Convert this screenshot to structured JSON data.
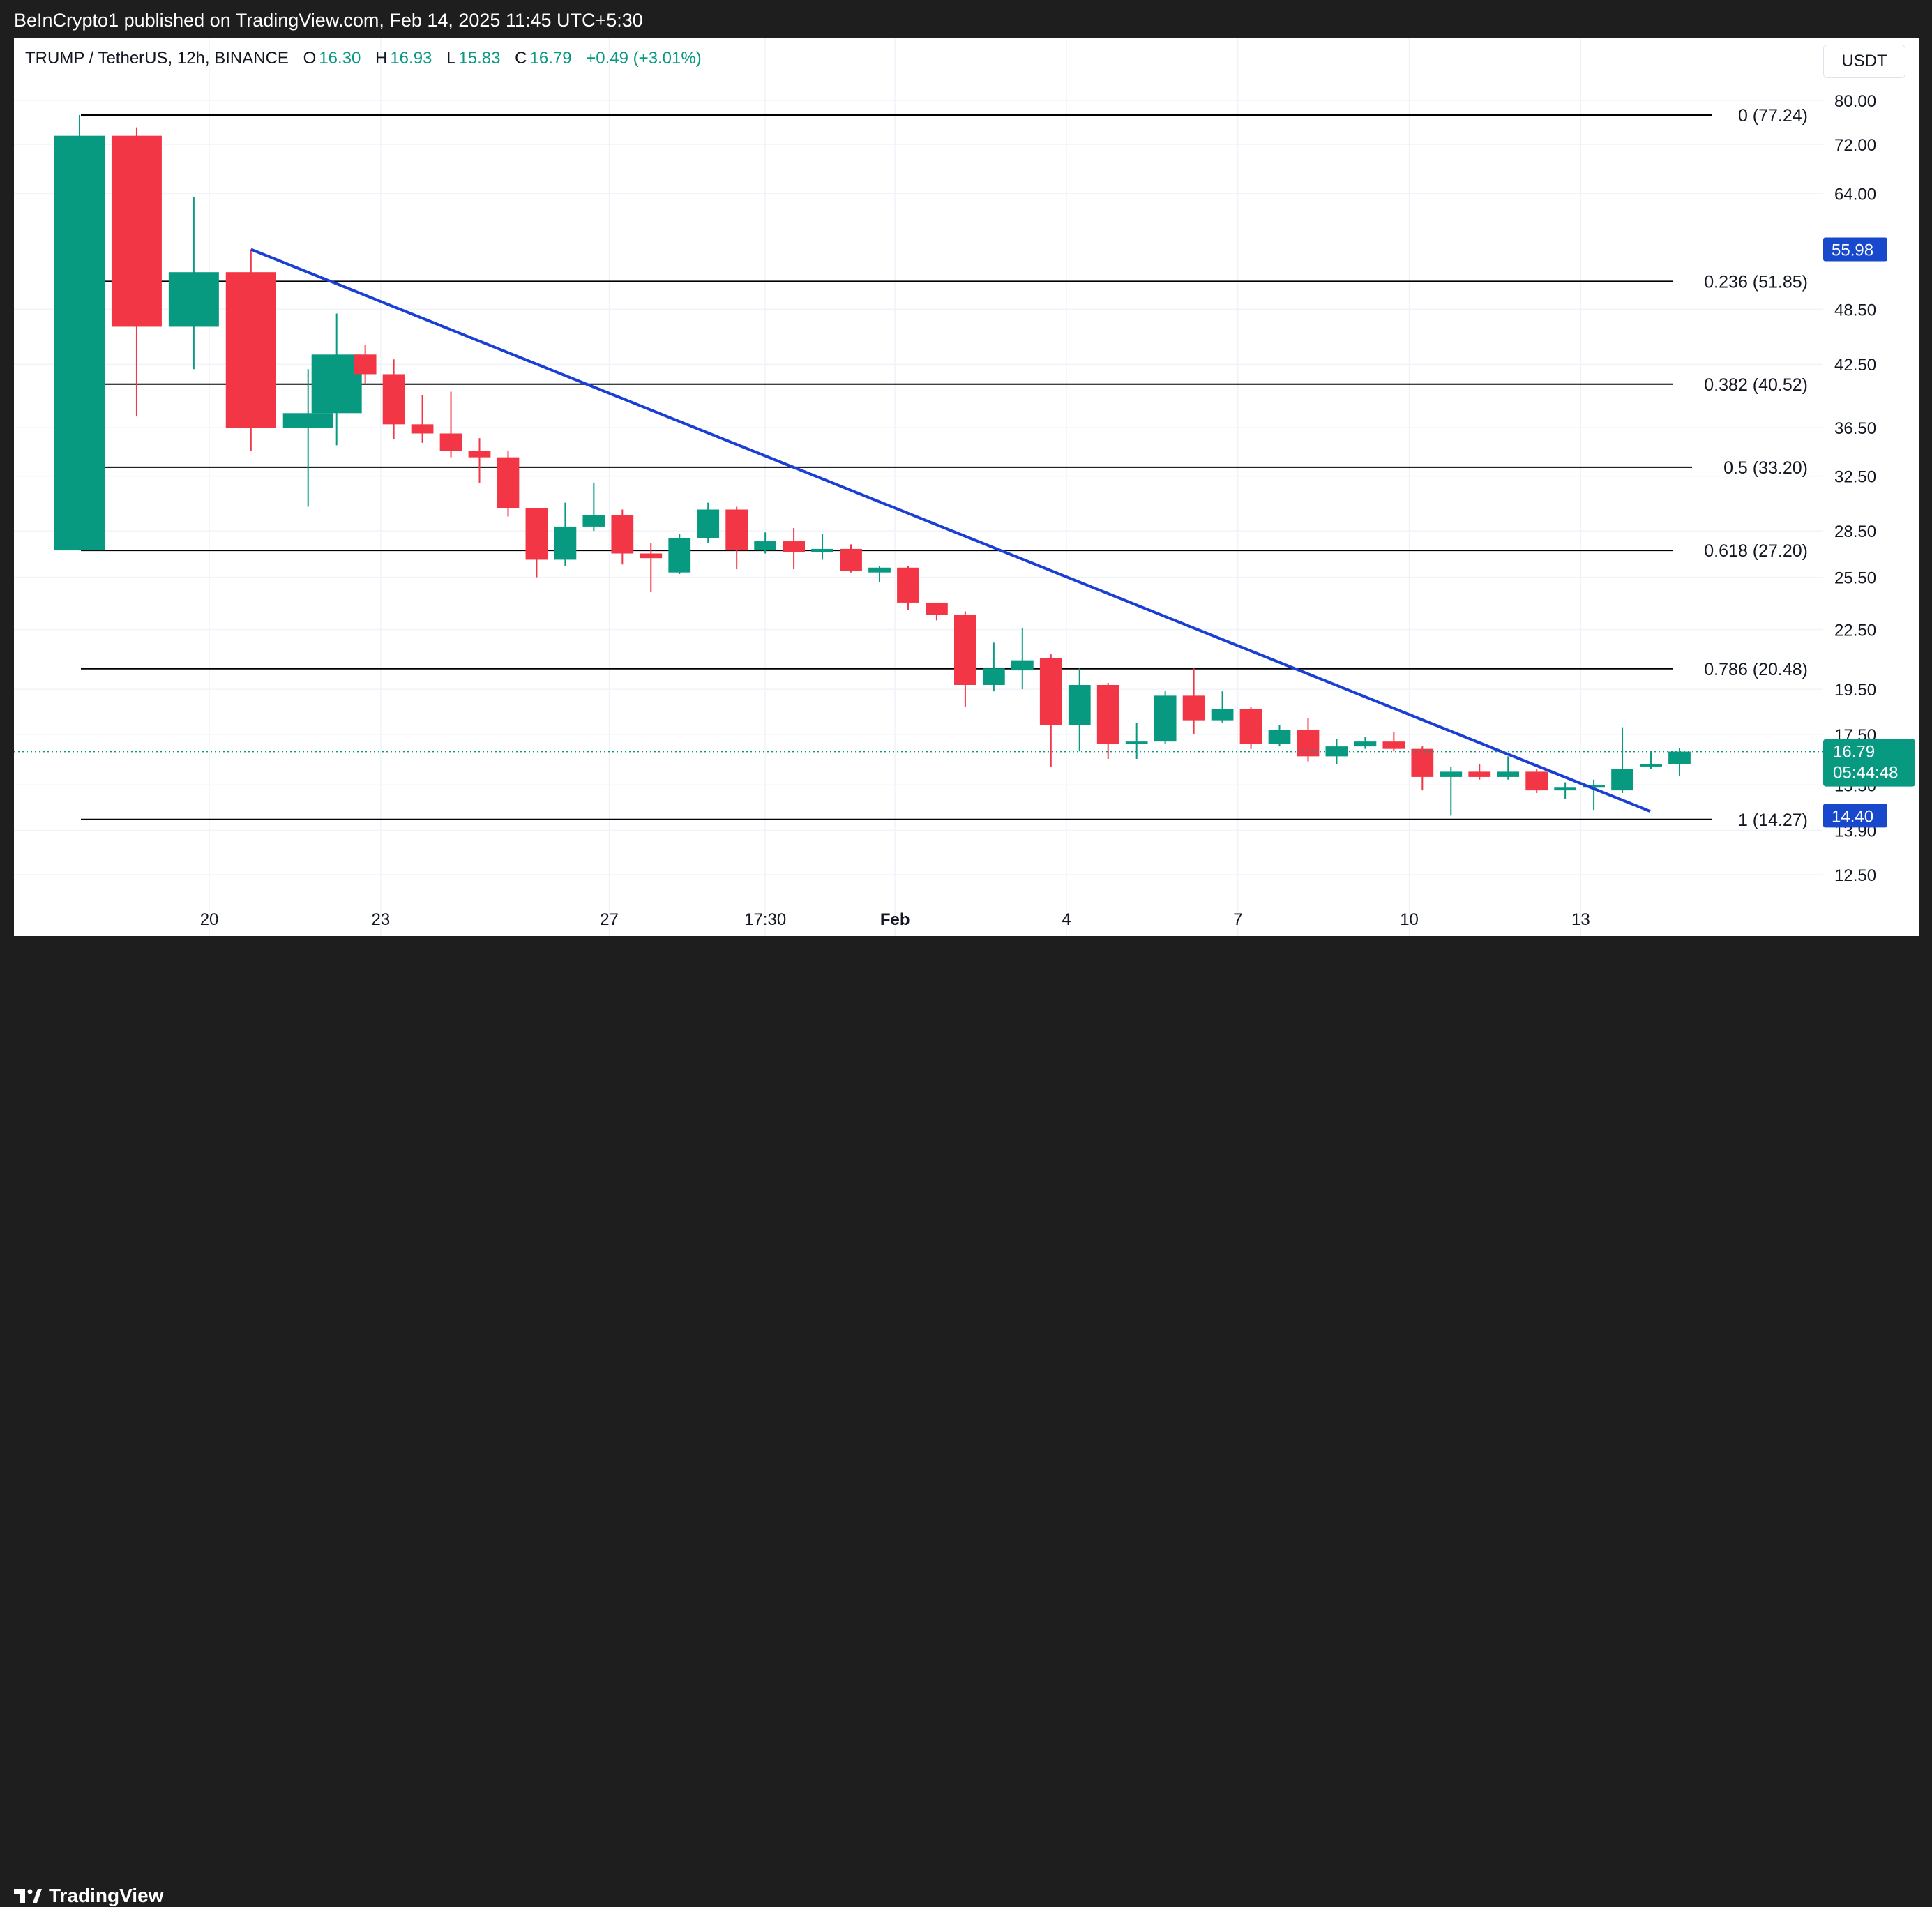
{
  "header": {
    "publisher": "BeInCrypto1 published on TradingView.com, Feb 14, 2025 11:45 UTC+5:30"
  },
  "footer": {
    "brand": "TradingView"
  },
  "legend": {
    "symbol": "TRUMP / TetherUS, 12h, BINANCE",
    "o_label": "O",
    "o": "16.30",
    "h_label": "H",
    "h": "16.93",
    "l_label": "L",
    "l": "15.83",
    "c_label": "C",
    "c": "16.79",
    "change": "+0.49 (+3.01%)"
  },
  "currency_button": "USDT",
  "colors": {
    "up": "#089981",
    "down": "#f23645",
    "trendline": "#1a3fd4",
    "fib": "#000000",
    "tag_blue": "#1848cc"
  },
  "chart_data": {
    "type": "candlestick",
    "scale": "log",
    "ylim": [
      11.9,
      85.0
    ],
    "y_ticks": [
      "80.00",
      "72.00",
      "64.00",
      "48.50",
      "42.50",
      "36.50",
      "32.50",
      "28.50",
      "25.50",
      "22.50",
      "19.50",
      "17.50",
      "15.50",
      "13.90",
      "12.50"
    ],
    "x_ticks": [
      {
        "label": "20",
        "t": "2025-01-20T00:00"
      },
      {
        "label": "23",
        "t": "2025-01-23T00:00"
      },
      {
        "label": "27",
        "t": "2025-01-27T00:00"
      },
      {
        "label": "17:30",
        "t": "2025-01-29T17:30"
      },
      {
        "label": "Feb",
        "t": "2025-02-01T00:00"
      },
      {
        "label": "4",
        "t": "2025-02-04T00:00"
      },
      {
        "label": "7",
        "t": "2025-02-07T00:00"
      },
      {
        "label": "10",
        "t": "2025-02-10T00:00"
      },
      {
        "label": "13",
        "t": "2025-02-13T00:00"
      }
    ],
    "candles": [
      {
        "t": "2025-01-17T17:30",
        "o": 27.2,
        "h": 77.24,
        "l": 27.2,
        "c": 73.5
      },
      {
        "t": "2025-01-18T17:30",
        "o": 73.5,
        "h": 75.0,
        "l": 37.5,
        "c": 46.5
      },
      {
        "t": "2025-01-19T17:30",
        "o": 46.5,
        "h": 63.5,
        "l": 42.0,
        "c": 53.0
      },
      {
        "t": "2025-01-20T17:30",
        "o": 53.0,
        "h": 55.98,
        "l": 34.5,
        "c": 36.5
      },
      {
        "t": "2025-01-21T17:30",
        "o": 36.5,
        "h": 42.0,
        "l": 30.2,
        "c": 37.8
      },
      {
        "t": "2025-01-22T05:30",
        "o": 37.8,
        "h": 48.0,
        "l": 35.0,
        "c": 43.5
      },
      {
        "t": "2025-01-22T17:30",
        "o": 43.5,
        "h": 44.5,
        "l": 40.5,
        "c": 41.5
      },
      {
        "t": "2025-01-23T05:30",
        "o": 41.5,
        "h": 43.0,
        "l": 35.5,
        "c": 36.8
      },
      {
        "t": "2025-01-23T17:30",
        "o": 36.8,
        "h": 39.5,
        "l": 35.2,
        "c": 36.0
      },
      {
        "t": "2025-01-24T05:30",
        "o": 36.0,
        "h": 39.8,
        "l": 34.0,
        "c": 34.5
      },
      {
        "t": "2025-01-24T17:30",
        "o": 34.5,
        "h": 35.6,
        "l": 32.0,
        "c": 34.0
      },
      {
        "t": "2025-01-25T05:30",
        "o": 34.0,
        "h": 34.5,
        "l": 29.5,
        "c": 30.1
      },
      {
        "t": "2025-01-25T17:30",
        "o": 30.1,
        "h": 30.1,
        "l": 25.5,
        "c": 26.6
      },
      {
        "t": "2025-01-26T05:30",
        "o": 26.6,
        "h": 30.5,
        "l": 26.2,
        "c": 28.8
      },
      {
        "t": "2025-01-26T17:30",
        "o": 28.8,
        "h": 32.0,
        "l": 28.5,
        "c": 29.6
      },
      {
        "t": "2025-01-27T05:30",
        "o": 29.6,
        "h": 30.0,
        "l": 26.3,
        "c": 27.0
      },
      {
        "t": "2025-01-27T17:30",
        "o": 27.0,
        "h": 27.7,
        "l": 24.6,
        "c": 26.7
      },
      {
        "t": "2025-01-28T05:30",
        "o": 25.8,
        "h": 28.3,
        "l": 25.7,
        "c": 28.0
      },
      {
        "t": "2025-01-28T17:30",
        "o": 28.0,
        "h": 30.5,
        "l": 27.7,
        "c": 30.0
      },
      {
        "t": "2025-01-29T05:30",
        "o": 30.0,
        "h": 30.2,
        "l": 26.0,
        "c": 27.2
      },
      {
        "t": "2025-01-29T17:30",
        "o": 27.2,
        "h": 28.4,
        "l": 27.0,
        "c": 27.8
      },
      {
        "t": "2025-01-30T05:30",
        "o": 27.8,
        "h": 28.7,
        "l": 26.0,
        "c": 27.1
      },
      {
        "t": "2025-01-30T17:30",
        "o": 27.1,
        "h": 28.3,
        "l": 26.6,
        "c": 27.3
      },
      {
        "t": "2025-01-31T05:30",
        "o": 27.3,
        "h": 27.6,
        "l": 25.8,
        "c": 25.9
      },
      {
        "t": "2025-01-31T17:30",
        "o": 25.8,
        "h": 26.2,
        "l": 25.2,
        "c": 26.1
      },
      {
        "t": "2025-02-01T05:30",
        "o": 26.1,
        "h": 26.2,
        "l": 23.6,
        "c": 24.0
      },
      {
        "t": "2025-02-01T17:30",
        "o": 24.0,
        "h": 24.0,
        "l": 23.0,
        "c": 23.3
      },
      {
        "t": "2025-02-02T05:30",
        "o": 23.3,
        "h": 23.5,
        "l": 18.7,
        "c": 19.7
      },
      {
        "t": "2025-02-02T17:30",
        "o": 19.7,
        "h": 21.8,
        "l": 19.4,
        "c": 20.5
      },
      {
        "t": "2025-02-03T05:30",
        "o": 20.4,
        "h": 22.6,
        "l": 19.5,
        "c": 20.9
      },
      {
        "t": "2025-02-03T17:30",
        "o": 21.0,
        "h": 21.2,
        "l": 16.2,
        "c": 17.9
      },
      {
        "t": "2025-02-04T05:30",
        "o": 17.9,
        "h": 20.5,
        "l": 16.8,
        "c": 19.7
      },
      {
        "t": "2025-02-04T17:30",
        "o": 19.7,
        "h": 19.8,
        "l": 16.5,
        "c": 17.1
      },
      {
        "t": "2025-02-05T05:30",
        "o": 17.1,
        "h": 18.0,
        "l": 16.5,
        "c": 17.2
      },
      {
        "t": "2025-02-05T17:30",
        "o": 17.2,
        "h": 19.4,
        "l": 17.1,
        "c": 19.2
      },
      {
        "t": "2025-02-06T05:30",
        "o": 19.2,
        "h": 20.5,
        "l": 17.5,
        "c": 18.1
      },
      {
        "t": "2025-02-06T17:30",
        "o": 18.1,
        "h": 19.4,
        "l": 18.0,
        "c": 18.6
      },
      {
        "t": "2025-02-07T05:30",
        "o": 18.6,
        "h": 18.7,
        "l": 16.9,
        "c": 17.1
      },
      {
        "t": "2025-02-07T17:30",
        "o": 17.1,
        "h": 17.9,
        "l": 17.0,
        "c": 17.7
      },
      {
        "t": "2025-02-08T05:30",
        "o": 17.7,
        "h": 18.2,
        "l": 16.4,
        "c": 16.6
      },
      {
        "t": "2025-02-08T17:30",
        "o": 16.6,
        "h": 17.3,
        "l": 16.3,
        "c": 17.0
      },
      {
        "t": "2025-02-09T05:30",
        "o": 17.0,
        "h": 17.4,
        "l": 16.9,
        "c": 17.2
      },
      {
        "t": "2025-02-09T17:30",
        "o": 17.2,
        "h": 17.6,
        "l": 16.8,
        "c": 16.9
      },
      {
        "t": "2025-02-10T05:30",
        "o": 16.9,
        "h": 17.0,
        "l": 15.3,
        "c": 15.8
      },
      {
        "t": "2025-02-10T17:30",
        "o": 15.8,
        "h": 16.2,
        "l": 14.4,
        "c": 16.0
      },
      {
        "t": "2025-02-11T05:30",
        "o": 16.0,
        "h": 16.3,
        "l": 15.7,
        "c": 15.8
      },
      {
        "t": "2025-02-11T17:30",
        "o": 15.8,
        "h": 16.6,
        "l": 15.7,
        "c": 16.0
      },
      {
        "t": "2025-02-12T05:30",
        "o": 16.0,
        "h": 16.1,
        "l": 15.2,
        "c": 15.3
      },
      {
        "t": "2025-02-12T17:30",
        "o": 15.3,
        "h": 15.6,
        "l": 15.0,
        "c": 15.4
      },
      {
        "t": "2025-02-13T05:30",
        "o": 15.4,
        "h": 15.7,
        "l": 14.6,
        "c": 15.5
      },
      {
        "t": "2025-02-13T17:30",
        "o": 15.3,
        "h": 17.8,
        "l": 15.2,
        "c": 16.1
      },
      {
        "t": "2025-02-14T05:30",
        "o": 16.2,
        "h": 16.8,
        "l": 16.1,
        "c": 16.3
      },
      {
        "t": "2025-02-14T17:30",
        "o": 16.3,
        "h": 16.93,
        "l": 15.83,
        "c": 16.79
      }
    ],
    "fib_levels": [
      {
        "ratio": "0",
        "price": 77.24,
        "label": "0 (77.24)"
      },
      {
        "ratio": "0.236",
        "price": 51.85,
        "label": "0.236 (51.85)"
      },
      {
        "ratio": "0.382",
        "price": 40.52,
        "label": "0.382 (40.52)"
      },
      {
        "ratio": "0.5",
        "price": 33.2,
        "label": "0.5 (33.20)"
      },
      {
        "ratio": "0.618",
        "price": 27.2,
        "label": "0.618 (27.20)"
      },
      {
        "ratio": "0.786",
        "price": 20.48,
        "label": "0.786 (20.48)"
      },
      {
        "ratio": "1",
        "price": 14.27,
        "label": "1 (14.27)"
      }
    ],
    "trendline": [
      {
        "t": "2025-01-20T17:30",
        "price": 55.98
      },
      {
        "t": "2025-02-13T17:30",
        "price": 14.55
      }
    ],
    "price_tags": [
      {
        "price": 55.98,
        "label": "55.98",
        "style": "blue"
      },
      {
        "price": 14.4,
        "label": "14.40",
        "style": "blue"
      },
      {
        "price": 16.79,
        "label": "16.79",
        "sub": "05:44:48",
        "style": "green"
      }
    ],
    "current_price": 16.79
  }
}
